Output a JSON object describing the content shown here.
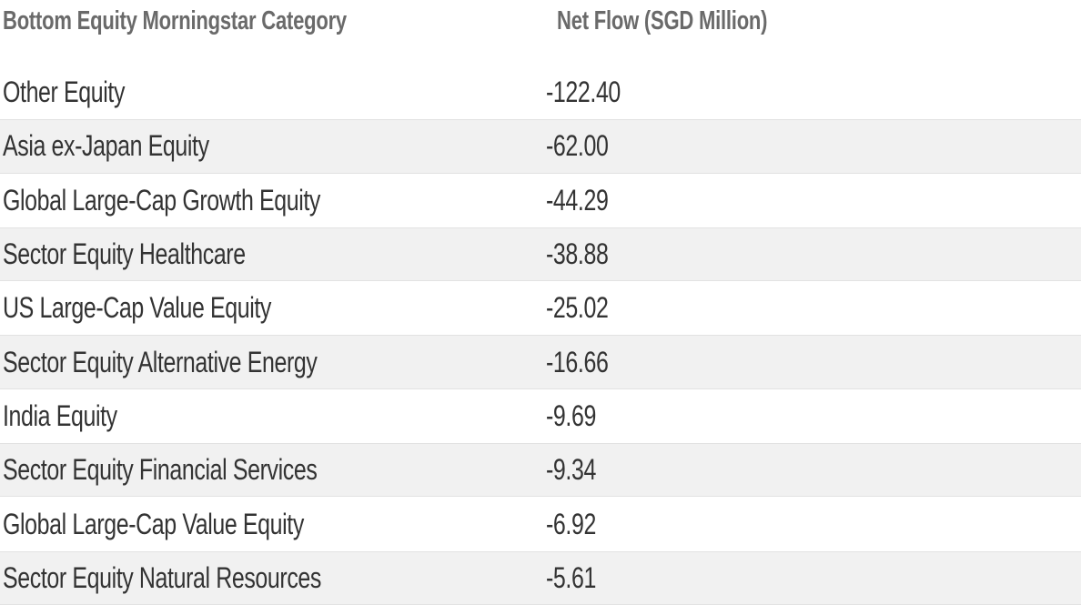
{
  "table": {
    "columns": [
      {
        "label": "Bottom Equity Morningstar Category"
      },
      {
        "label": "Net Flow (SGD Million)"
      }
    ],
    "rows": [
      {
        "category": "Other Equity",
        "net_flow": "-122.40"
      },
      {
        "category": "Asia ex-Japan Equity",
        "net_flow": "-62.00"
      },
      {
        "category": "Global Large-Cap Growth Equity",
        "net_flow": "-44.29"
      },
      {
        "category": "Sector Equity Healthcare",
        "net_flow": "-38.88"
      },
      {
        "category": "US Large-Cap Value Equity",
        "net_flow": "-25.02"
      },
      {
        "category": "Sector Equity Alternative Energy",
        "net_flow": "-16.66"
      },
      {
        "category": "India Equity",
        "net_flow": "-9.69"
      },
      {
        "category": "Sector Equity Financial Services",
        "net_flow": "-9.34"
      },
      {
        "category": "Global Large-Cap Value Equity",
        "net_flow": "-6.92"
      },
      {
        "category": "Sector Equity Natural Resources",
        "net_flow": "-5.61"
      }
    ],
    "colors": {
      "background": "#ffffff",
      "row_alt_bg": "#f1f1f1",
      "row_alt_border": "#e2e2e2",
      "header_text": "#6a6a6a",
      "row_text": "#333333"
    }
  },
  "chart_data": {
    "type": "table",
    "title": "Bottom Equity Morningstar Category — Net Flow (SGD Million)",
    "columns": [
      "Bottom Equity Morningstar Category",
      "Net Flow (SGD Million)"
    ],
    "categories": [
      "Other Equity",
      "Asia ex-Japan Equity",
      "Global Large-Cap Growth Equity",
      "Sector Equity Healthcare",
      "US Large-Cap Value Equity",
      "Sector Equity Alternative Energy",
      "India Equity",
      "Sector Equity Financial Services",
      "Global Large-Cap Value Equity",
      "Sector Equity Natural Resources"
    ],
    "values": [
      -122.4,
      -62.0,
      -44.29,
      -38.88,
      -25.02,
      -16.66,
      -9.69,
      -9.34,
      -6.92,
      -5.61
    ]
  }
}
